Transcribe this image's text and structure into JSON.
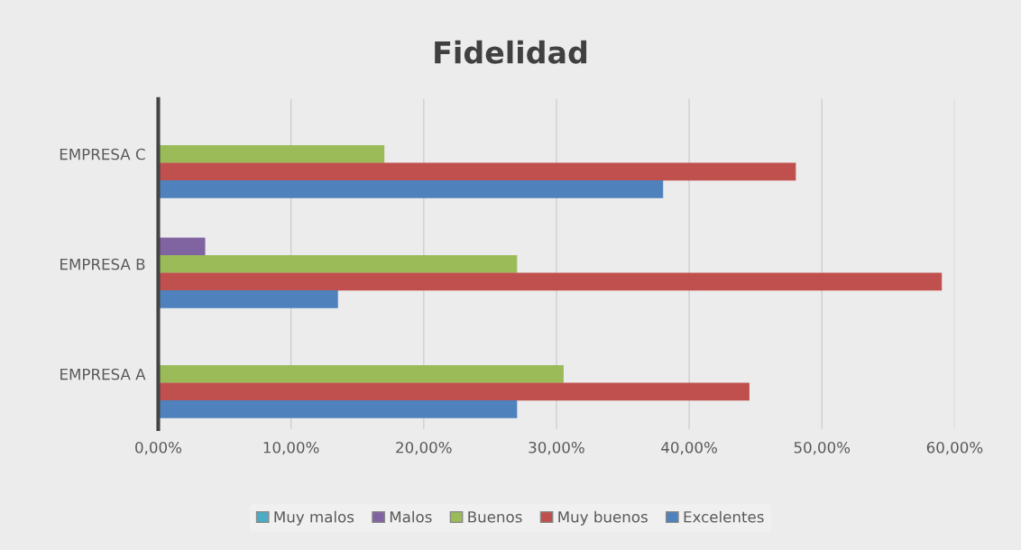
{
  "chart_data": {
    "type": "bar",
    "orientation": "horizontal",
    "title": "Fidelidad",
    "categories": [
      "EMPRESA C",
      "EMPRESA B",
      "EMPRESA A"
    ],
    "series": [
      {
        "name": "Muy malos",
        "color": "#4bacc6",
        "values": [
          0,
          0,
          0
        ]
      },
      {
        "name": "Malos",
        "color": "#8064a2",
        "values": [
          0,
          3.5,
          0
        ]
      },
      {
        "name": "Buenos",
        "color": "#9bbb59",
        "values": [
          17,
          27,
          30.5
        ]
      },
      {
        "name": "Muy buenos",
        "color": "#c0504d",
        "values": [
          48,
          59,
          44.5
        ]
      },
      {
        "name": "Excelentes",
        "color": "#4f81bd",
        "values": [
          38,
          13.5,
          27
        ]
      }
    ],
    "xlim": [
      0,
      60
    ],
    "xticks": [
      {
        "value": 0,
        "label": "0,00%"
      },
      {
        "value": 10,
        "label": "10,00%"
      },
      {
        "value": 20,
        "label": "20,00%"
      },
      {
        "value": 30,
        "label": "30,00%"
      },
      {
        "value": 40,
        "label": "40,00%"
      },
      {
        "value": 50,
        "label": "50,00%"
      },
      {
        "value": 60,
        "label": "60,00%"
      }
    ],
    "grid": "x",
    "legend": "bottom"
  }
}
